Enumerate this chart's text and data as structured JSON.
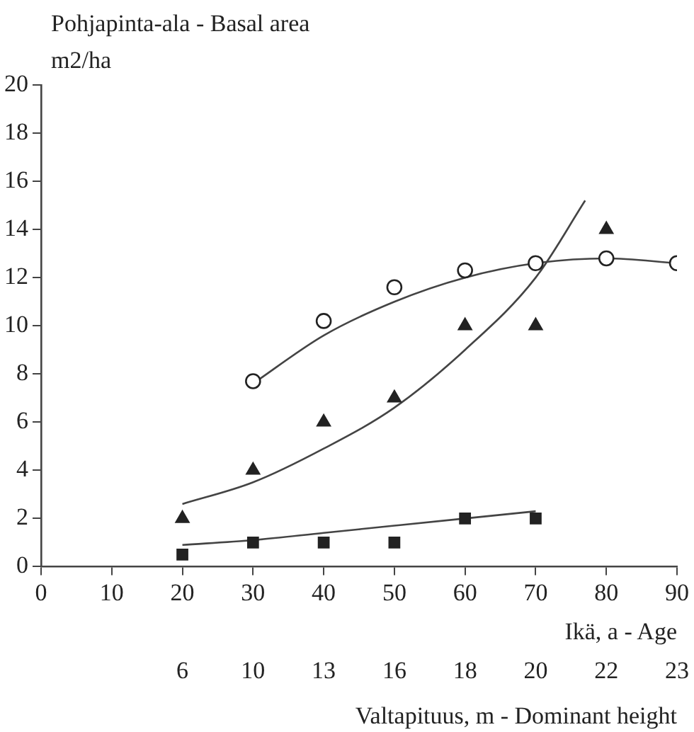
{
  "chart_data": {
    "type": "scatter",
    "title": "Pohjapinta-ala - Basal area",
    "ylabel": "m2/ha",
    "xlabel": "Ikä, a - Age",
    "series": [
      {
        "marker": "circle",
        "color": "#222222",
        "x": [
          30,
          40,
          50,
          60,
          70,
          80,
          90
        ],
        "values": [
          7.7,
          10.2,
          11.6,
          12.3,
          12.6,
          12.8,
          12.6
        ]
      },
      {
        "marker": "triangle",
        "color": "#222222",
        "x": [
          20,
          30,
          40,
          50,
          60,
          70,
          80
        ],
        "values": [
          2,
          4,
          6,
          7,
          10,
          10,
          14
        ]
      },
      {
        "marker": "square",
        "color": "#222222",
        "x": [
          20,
          30,
          40,
          50,
          60,
          70
        ],
        "values": [
          0.5,
          1,
          1,
          1,
          2,
          2
        ]
      },
      {
        "type": "line",
        "marker": "none",
        "color": "#444444",
        "x": [
          30,
          40,
          50,
          60,
          70,
          80,
          90
        ],
        "values": [
          7.6,
          9.6,
          11.0,
          12.0,
          12.6,
          12.8,
          12.6
        ]
      },
      {
        "type": "line",
        "marker": "none",
        "color": "#444444",
        "x": [
          20,
          30,
          40,
          50,
          60,
          70,
          77
        ],
        "values": [
          2.6,
          3.5,
          4.9,
          6.6,
          9.0,
          12.0,
          15.2
        ]
      },
      {
        "type": "line",
        "marker": "none",
        "color": "#444444",
        "x": [
          20,
          30,
          40,
          50,
          60,
          70
        ],
        "values": [
          0.9,
          1.1,
          1.4,
          1.7,
          2.0,
          2.3
        ]
      }
    ],
    "xlim": [
      0,
      90
    ],
    "xticks": [
      0,
      10,
      20,
      30,
      40,
      50,
      60,
      70,
      80,
      90
    ],
    "annotations": [
      "6",
      "10",
      "13",
      "16",
      "18",
      "20",
      "22",
      "23",
      "Valtapituus, m - Dominant height"
    ],
    "ylim": [
      0,
      20
    ],
    "yticks": [
      0,
      2,
      4,
      6,
      8,
      10,
      12,
      14,
      16,
      18,
      20
    ],
    "grid": false,
    "legend": false
  }
}
